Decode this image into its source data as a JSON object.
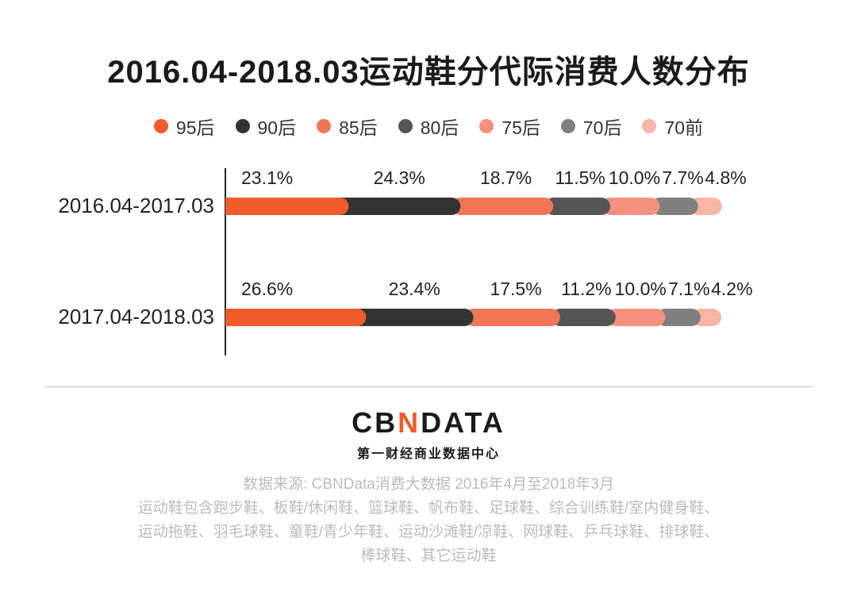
{
  "title": "2016.04-2018.03运动鞋分代际消费人数分布",
  "logo": {
    "part1": "CB",
    "part2": "N",
    "part3": "DATA"
  },
  "subtitle": "第一财经商业数据中心",
  "source": {
    "line1": "数据来源: CBNData消费大数据   2016年4月至2018年3月",
    "line2": "运动鞋包含跑步鞋、板鞋/休闲鞋、篮球鞋、帆布鞋、足球鞋、综合训练鞋/室内健身鞋、",
    "line3": "运动拖鞋、羽毛球鞋、童鞋/青少年鞋、运动沙滩鞋/凉鞋、网球鞋、乒乓球鞋、排球鞋、",
    "line4": "棒球鞋、其它运动鞋"
  },
  "chart_data": {
    "type": "bar",
    "orientation": "horizontal",
    "stacked": true,
    "title": "2016.04-2018.03运动鞋分代际消费人数分布",
    "legend_position": "top",
    "categories": [
      "2016.04-2017.03",
      "2017.04-2018.03"
    ],
    "series": [
      {
        "name": "95后",
        "color": "#f15a2b",
        "values": [
          23.1,
          26.6
        ],
        "labels": [
          "23.1%",
          "26.6%"
        ]
      },
      {
        "name": "90后",
        "color": "#333333",
        "values": [
          24.3,
          23.4
        ],
        "labels": [
          "24.3%",
          "23.4%"
        ]
      },
      {
        "name": "85后",
        "color": "#f27558",
        "values": [
          18.7,
          17.5
        ],
        "labels": [
          "18.7%",
          "17.5%"
        ]
      },
      {
        "name": "80后",
        "color": "#555555",
        "values": [
          11.5,
          11.2
        ],
        "labels": [
          "11.5%",
          "11.2%"
        ]
      },
      {
        "name": "75后",
        "color": "#f5917c",
        "values": [
          10.0,
          10.0
        ],
        "labels": [
          "10.0%",
          "10.0%"
        ]
      },
      {
        "name": "70后",
        "color": "#7f7f7f",
        "values": [
          7.7,
          7.1
        ],
        "labels": [
          "7.7%",
          "7.1%"
        ]
      },
      {
        "name": "70前",
        "color": "#f8b4a5",
        "values": [
          4.8,
          4.2
        ],
        "labels": [
          "4.8%",
          "4.2%"
        ]
      }
    ]
  }
}
